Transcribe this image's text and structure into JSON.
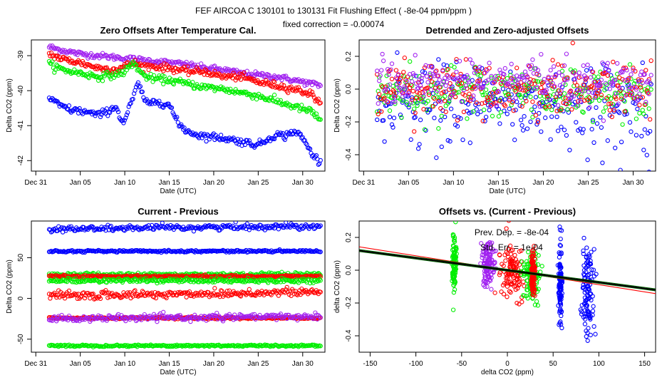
{
  "figure": {
    "title": "FEF    AIRCOA C    130101 to 130131    Fit Flushing Effect ( -8e-04 ppm/ppm )",
    "subtitle": "fixed correction = -0.00074"
  },
  "colors": {
    "blue": "#0000ff",
    "red": "#ff0000",
    "green": "#00ee00",
    "purple": "#a020f0",
    "black": "#000000",
    "darkgreen": "#006400"
  },
  "chart_data": [
    {
      "id": "p1",
      "type": "scatter",
      "title": "Zero Offsets After Temperature Cal.",
      "xlabel": "Date (UTC)",
      "ylabel": "Delta CO2 (ppm)",
      "xlim": [
        -0.5,
        32.5
      ],
      "ylim": [
        -42.3,
        -38.55
      ],
      "xticks": [
        0,
        5,
        10,
        15,
        20,
        25,
        30
      ],
      "xticklabels": [
        "Dec 31",
        "Jan 05",
        "Jan 10",
        "Jan 15",
        "Jan 20",
        "Jan 25",
        "Jan 30"
      ],
      "yticks": [
        -42,
        -41,
        -40,
        -39
      ],
      "yticklabels": [
        "-42",
        "-41",
        "-40",
        "-39"
      ],
      "series": [
        {
          "name": "purple",
          "color": "#a020f0",
          "x": [
            1.5,
            3,
            5,
            7,
            9,
            11,
            13,
            15,
            17,
            19,
            21,
            23,
            25,
            27,
            29,
            31,
            32
          ],
          "y": [
            -38.75,
            -38.85,
            -38.95,
            -39.0,
            -39.05,
            -39.1,
            -39.15,
            -39.2,
            -39.25,
            -39.35,
            -39.4,
            -39.5,
            -39.55,
            -39.6,
            -39.7,
            -39.8,
            -39.85
          ],
          "noise": 0.04
        },
        {
          "name": "red",
          "color": "#ff0000",
          "x": [
            1.5,
            3,
            5,
            7,
            9,
            10,
            11,
            12,
            13,
            15,
            17,
            19,
            21,
            23,
            25,
            27,
            29,
            31,
            32
          ],
          "y": [
            -38.95,
            -39.1,
            -39.2,
            -39.35,
            -39.4,
            -39.3,
            -39.2,
            -39.3,
            -39.3,
            -39.35,
            -39.45,
            -39.45,
            -39.6,
            -39.6,
            -39.75,
            -39.85,
            -39.95,
            -40.1,
            -40.35
          ],
          "noise": 0.05
        },
        {
          "name": "green",
          "color": "#00ee00",
          "x": [
            1.5,
            3,
            5,
            7,
            9,
            10,
            11,
            12,
            13,
            15,
            17,
            19,
            21,
            23,
            25,
            27,
            29,
            31,
            32
          ],
          "y": [
            -39.25,
            -39.4,
            -39.5,
            -39.6,
            -39.55,
            -39.45,
            -39.2,
            -39.55,
            -39.65,
            -39.7,
            -39.8,
            -39.9,
            -39.95,
            -40.05,
            -40.15,
            -40.3,
            -40.45,
            -40.6,
            -40.85
          ],
          "noise": 0.05
        },
        {
          "name": "blue",
          "color": "#0000ff",
          "x": [
            1.5,
            2.5,
            4,
            5.5,
            7,
            8,
            9,
            9.8,
            10.5,
            11.5,
            12.5,
            13.5,
            15,
            16,
            17,
            18,
            19,
            21,
            23,
            25,
            26,
            27,
            28,
            29,
            30,
            31,
            32
          ],
          "y": [
            -40.2,
            -40.4,
            -40.55,
            -40.6,
            -40.7,
            -40.6,
            -40.45,
            -40.95,
            -40.5,
            -39.8,
            -40.4,
            -40.3,
            -40.4,
            -40.95,
            -41.15,
            -41.25,
            -41.3,
            -41.35,
            -41.45,
            -41.55,
            -41.4,
            -41.25,
            -41.3,
            -41.15,
            -41.35,
            -41.8,
            -42.05
          ],
          "noise": 0.05
        }
      ]
    },
    {
      "id": "p2",
      "type": "scatter",
      "title": "Detrended and Zero-adjusted Offsets",
      "xlabel": "Date (UTC)",
      "ylabel": "Delta CO2 (ppm)",
      "xlim": [
        -0.5,
        32.5
      ],
      "ylim": [
        -0.5,
        0.3
      ],
      "xticks": [
        0,
        5,
        10,
        15,
        20,
        25,
        30
      ],
      "xticklabels": [
        "Dec 31",
        "Jan 05",
        "Jan 10",
        "Jan 15",
        "Jan 20",
        "Jan 25",
        "Jan 30"
      ],
      "yticks": [
        -0.4,
        -0.2,
        0.0,
        0.2
      ],
      "yticklabels": [
        "-0.4",
        "-0.2",
        "0.0",
        "0.2"
      ],
      "series": [
        {
          "name": "blue",
          "color": "#0000ff",
          "x": [
            1.5,
            32
          ],
          "y": [
            -0.1,
            -0.1
          ],
          "noise": 0.12
        },
        {
          "name": "green",
          "color": "#00ee00",
          "x": [
            1.5,
            32
          ],
          "y": [
            -0.02,
            -0.02
          ],
          "noise": 0.08
        },
        {
          "name": "red",
          "color": "#ff0000",
          "x": [
            1.5,
            32
          ],
          "y": [
            0.0,
            0.0
          ],
          "noise": 0.08
        },
        {
          "name": "purple",
          "color": "#a020f0",
          "x": [
            1.5,
            32
          ],
          "y": [
            0.04,
            0.04
          ],
          "noise": 0.07
        }
      ]
    },
    {
      "id": "p3",
      "type": "scatter",
      "title": "Current - Previous",
      "xlabel": "Date (UTC)",
      "ylabel": "Delta CO2 (ppm)",
      "xlim": [
        -0.5,
        32.5
      ],
      "ylim": [
        -66,
        95
      ],
      "xticks": [
        0,
        5,
        10,
        15,
        20,
        25,
        30
      ],
      "xticklabels": [
        "Dec 31",
        "Jan 05",
        "Jan 10",
        "Jan 15",
        "Jan 20",
        "Jan 25",
        "Jan 30"
      ],
      "yticks": [
        -50,
        0,
        50
      ],
      "yticklabels": [
        "-50",
        "0",
        "50"
      ],
      "series": [
        {
          "name": "blue-high",
          "color": "#0000ff",
          "x": [
            1.5,
            32
          ],
          "y": [
            85,
            89
          ],
          "noise": 1.8
        },
        {
          "name": "blue-mid",
          "color": "#0000ff",
          "x": [
            1.5,
            32
          ],
          "y": [
            58,
            58
          ],
          "noise": 0.6
        },
        {
          "name": "green-30",
          "color": "#00ee00",
          "x": [
            1.5,
            32
          ],
          "y": [
            29,
            29
          ],
          "noise": 1.2
        },
        {
          "name": "red-27",
          "color": "#ff0000",
          "x": [
            1.5,
            32
          ],
          "y": [
            27,
            27
          ],
          "noise": 0.7
        },
        {
          "name": "green-22",
          "color": "#00ee00",
          "x": [
            1.5,
            32
          ],
          "y": [
            22,
            22
          ],
          "noise": 1.2
        },
        {
          "name": "red-5",
          "color": "#ff0000",
          "x": [
            1.5,
            32
          ],
          "y": [
            3,
            8
          ],
          "noise": 2.5
        },
        {
          "name": "red-neg",
          "color": "#ff0000",
          "x": [
            1.5,
            32
          ],
          "y": [
            -24,
            -24
          ],
          "noise": 0.6
        },
        {
          "name": "purple-neg",
          "color": "#a020f0",
          "x": [
            1.5,
            32
          ],
          "y": [
            -25,
            -22
          ],
          "noise": 1.8
        },
        {
          "name": "green-neg",
          "color": "#00ee00",
          "x": [
            1.5,
            32
          ],
          "y": [
            -58,
            -58
          ],
          "noise": 0.6
        }
      ]
    },
    {
      "id": "p4",
      "type": "scatter",
      "title": "Offsets vs. (Current - Previous)",
      "xlabel": "delta CO2 (ppm)",
      "ylabel": "delta CO2 (ppm)",
      "xlim": [
        -162,
        162
      ],
      "ylim": [
        -0.5,
        0.3
      ],
      "xticks": [
        -150,
        -100,
        -50,
        0,
        50,
        100,
        150
      ],
      "xticklabels": [
        "-150",
        "-100",
        "-50",
        "0",
        "50",
        "100",
        "150"
      ],
      "yticks": [
        -0.4,
        -0.2,
        0.0,
        0.2
      ],
      "yticklabels": [
        "-0.4",
        "-0.2",
        "0.0",
        "0.2"
      ],
      "clusters": [
        {
          "color": "#00ee00",
          "x": -58,
          "y": 0.03,
          "spread": 0.08,
          "xspread": 1
        },
        {
          "color": "#a020f0",
          "x": -22,
          "y": 0.04,
          "spread": 0.07,
          "xspread": 4
        },
        {
          "color": "#ff0000",
          "x": 5,
          "y": 0.0,
          "spread": 0.08,
          "xspread": 6
        },
        {
          "color": "#00ee00",
          "x": 26,
          "y": -0.03,
          "spread": 0.08,
          "xspread": 5
        },
        {
          "color": "#ff0000",
          "x": 28,
          "y": -0.02,
          "spread": 0.06,
          "xspread": 1
        },
        {
          "color": "#0000ff",
          "x": 58,
          "y": -0.08,
          "spread": 0.12,
          "xspread": 1
        },
        {
          "color": "#0000ff",
          "x": 88,
          "y": -0.12,
          "spread": 0.13,
          "xspread": 3
        }
      ],
      "lines": [
        {
          "name": "red-fit",
          "color": "#ff0000",
          "slope": -0.00088,
          "intercept": 0.0
        },
        {
          "name": "green-fit-upper",
          "color": "#006400",
          "slope": -0.00074,
          "intercept": 0.006
        },
        {
          "name": "green-fit-lower",
          "color": "#006400",
          "slope": -0.00074,
          "intercept": -0.006
        },
        {
          "name": "black-fit",
          "color": "#000000",
          "slope": -0.00074,
          "intercept": 0.0
        }
      ],
      "annotations": [
        "Prev. Dep. =  -8e-04",
        "Std. Err. =  1e-04"
      ]
    }
  ]
}
